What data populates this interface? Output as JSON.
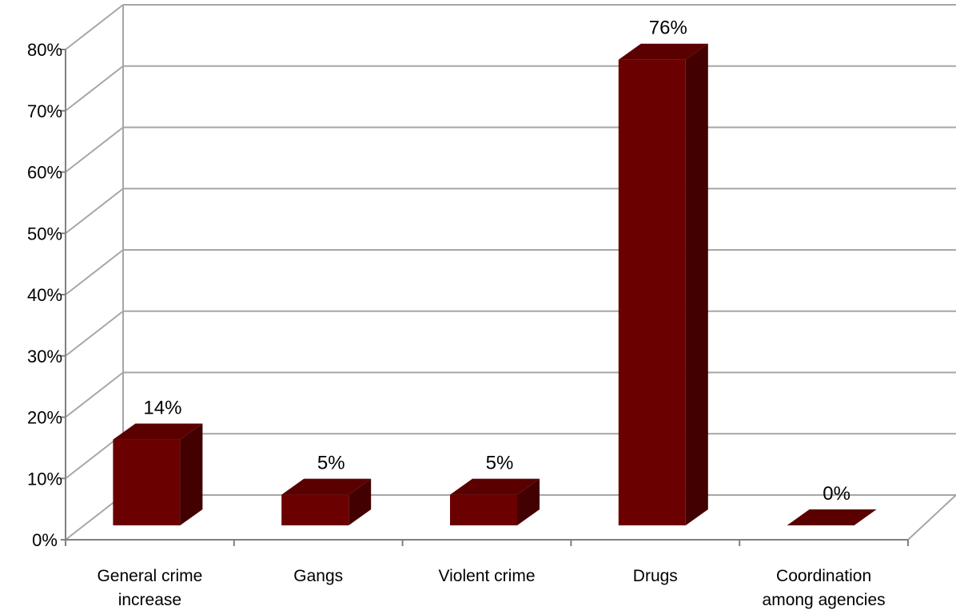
{
  "chart_data": {
    "type": "bar",
    "style": "3d-column",
    "categories": [
      [
        "General crime",
        "increase"
      ],
      [
        "Gangs"
      ],
      [
        "Violent crime"
      ],
      [
        "Drugs"
      ],
      [
        "Coordination",
        "among agencies"
      ]
    ],
    "values": [
      14,
      5,
      5,
      76,
      0
    ],
    "data_labels": [
      "14%",
      "5%",
      "5%",
      "76%",
      "0%"
    ],
    "y_ticks": [
      "0%",
      "10%",
      "20%",
      "30%",
      "40%",
      "50%",
      "60%",
      "70%",
      "80%"
    ],
    "ylim": [
      0,
      80
    ],
    "grid": true,
    "legend": "none",
    "colors": {
      "bar_front": "#6b0000",
      "bar_top": "#5a0000",
      "bar_side": "#430000",
      "grid": "#a6a6a6",
      "axis": "#808080"
    }
  }
}
